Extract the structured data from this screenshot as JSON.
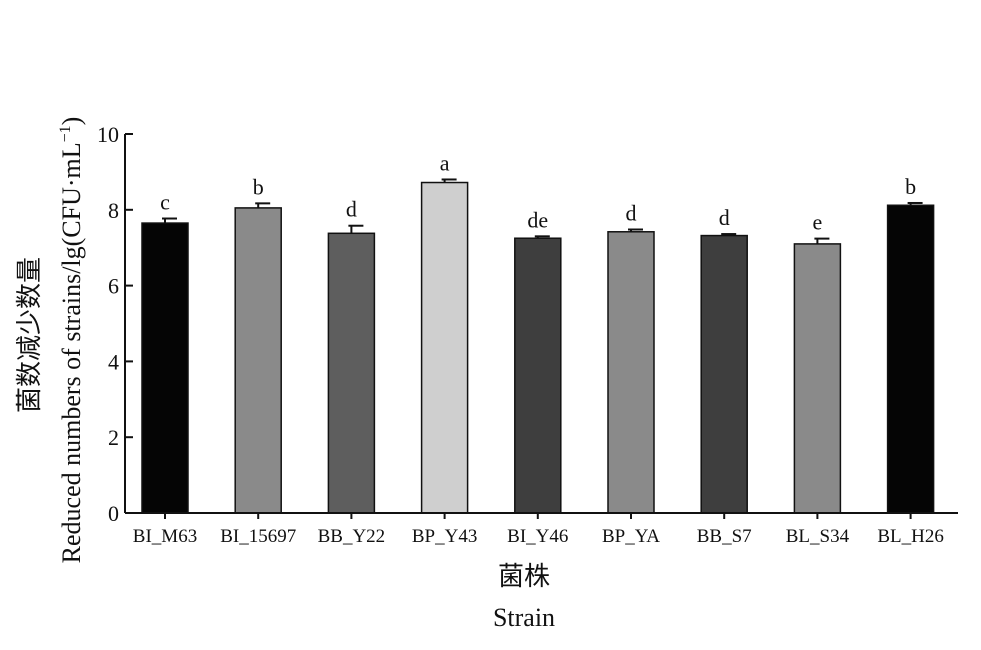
{
  "chart_data": {
    "type": "bar",
    "ylabel_zh": "菌数减少数量",
    "ylabel_en_prefix": "Reduced numbers of strains/lg(CFU·mL",
    "ylabel_en_sup": "−1",
    "ylabel_en_suffix": ")",
    "xlabel_zh": "菌株",
    "xlabel_en": "Strain",
    "ylim": [
      0,
      10
    ],
    "yticks": [
      0,
      2,
      4,
      6,
      8,
      10
    ],
    "ytick_labels": [
      "0",
      "2",
      "4",
      "6",
      "8",
      "10"
    ],
    "categories": [
      "BI_M63",
      "BI_15697",
      "BB_Y22",
      "BP_Y43",
      "BI_Y46",
      "BP_YA",
      "BB_S7",
      "BL_S34",
      "BL_H26"
    ],
    "values": [
      7.65,
      8.05,
      7.38,
      8.72,
      7.25,
      7.42,
      7.32,
      7.1,
      8.12
    ],
    "errors": [
      0.12,
      0.12,
      0.2,
      0.08,
      0.05,
      0.06,
      0.04,
      0.14,
      0.06
    ],
    "significance": [
      "c",
      "b",
      "d",
      "a",
      "de",
      "d",
      "d",
      "e",
      "b"
    ],
    "colors": [
      "#050505",
      "#8a8a8a",
      "#5e5e5e",
      "#cfcfcf",
      "#3e3e3e",
      "#8a8a8a",
      "#3e3e3e",
      "#8a8a8a",
      "#050505"
    ]
  }
}
